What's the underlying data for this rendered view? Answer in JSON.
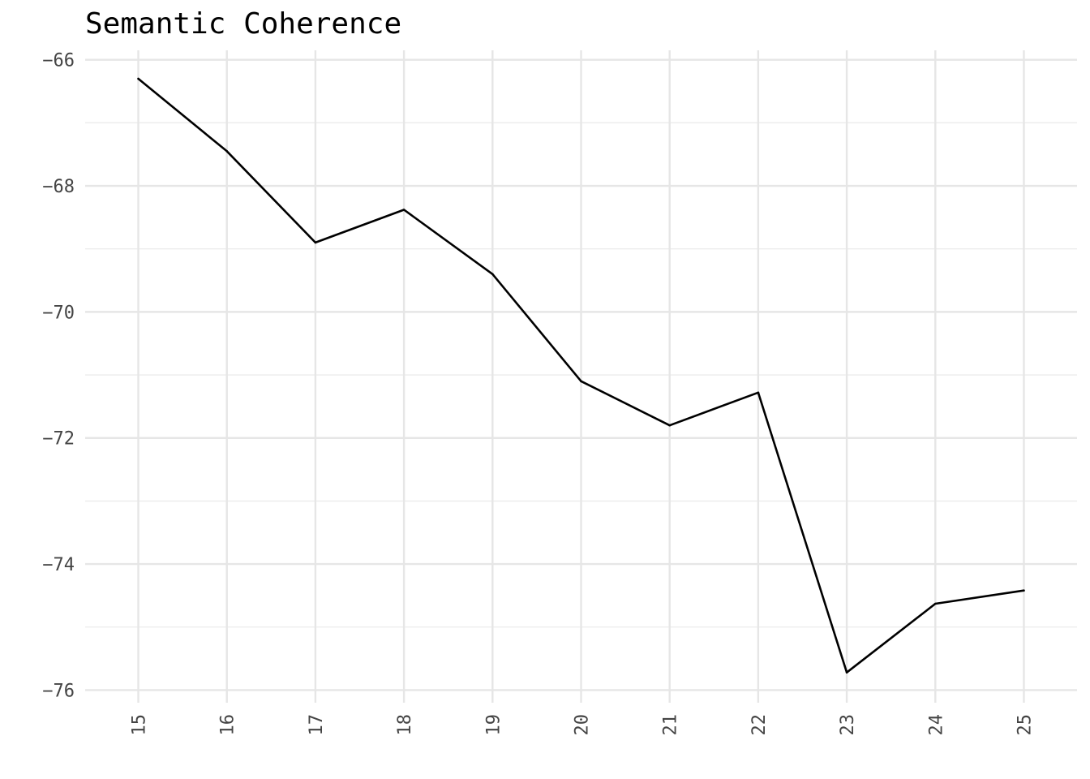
{
  "chart_data": {
    "type": "line",
    "title": "Semantic Coherence",
    "xlabel": "",
    "ylabel": "",
    "x": [
      15,
      16,
      17,
      18,
      19,
      20,
      21,
      22,
      23,
      24,
      25
    ],
    "series": [
      {
        "values": [
          -66.3,
          -67.45,
          -68.9,
          -68.38,
          -69.4,
          -71.1,
          -71.8,
          -71.28,
          -75.72,
          -74.63,
          -74.42
        ]
      }
    ],
    "xlim": [
      14.4,
      25.6
    ],
    "ylim": [
      -76.2,
      -65.85
    ],
    "x_ticks": [
      15,
      16,
      17,
      18,
      19,
      20,
      21,
      22,
      23,
      24,
      25
    ],
    "x_tick_labels": [
      "15",
      "16",
      "17",
      "18",
      "19",
      "20",
      "21",
      "22",
      "23",
      "24",
      "25"
    ],
    "y_ticks": [
      -66,
      -68,
      -70,
      -72,
      -74,
      -76
    ],
    "y_tick_labels": [
      "−66",
      "−68",
      "−70",
      "−72",
      "−74",
      "−76"
    ],
    "y_minor_ticks": [
      -67,
      -69,
      -71,
      -73,
      -75
    ],
    "x_tick_rotation": -90,
    "grid": true,
    "legend": "none",
    "line_color": "#000000",
    "grid_color": "#e6e6e6"
  }
}
